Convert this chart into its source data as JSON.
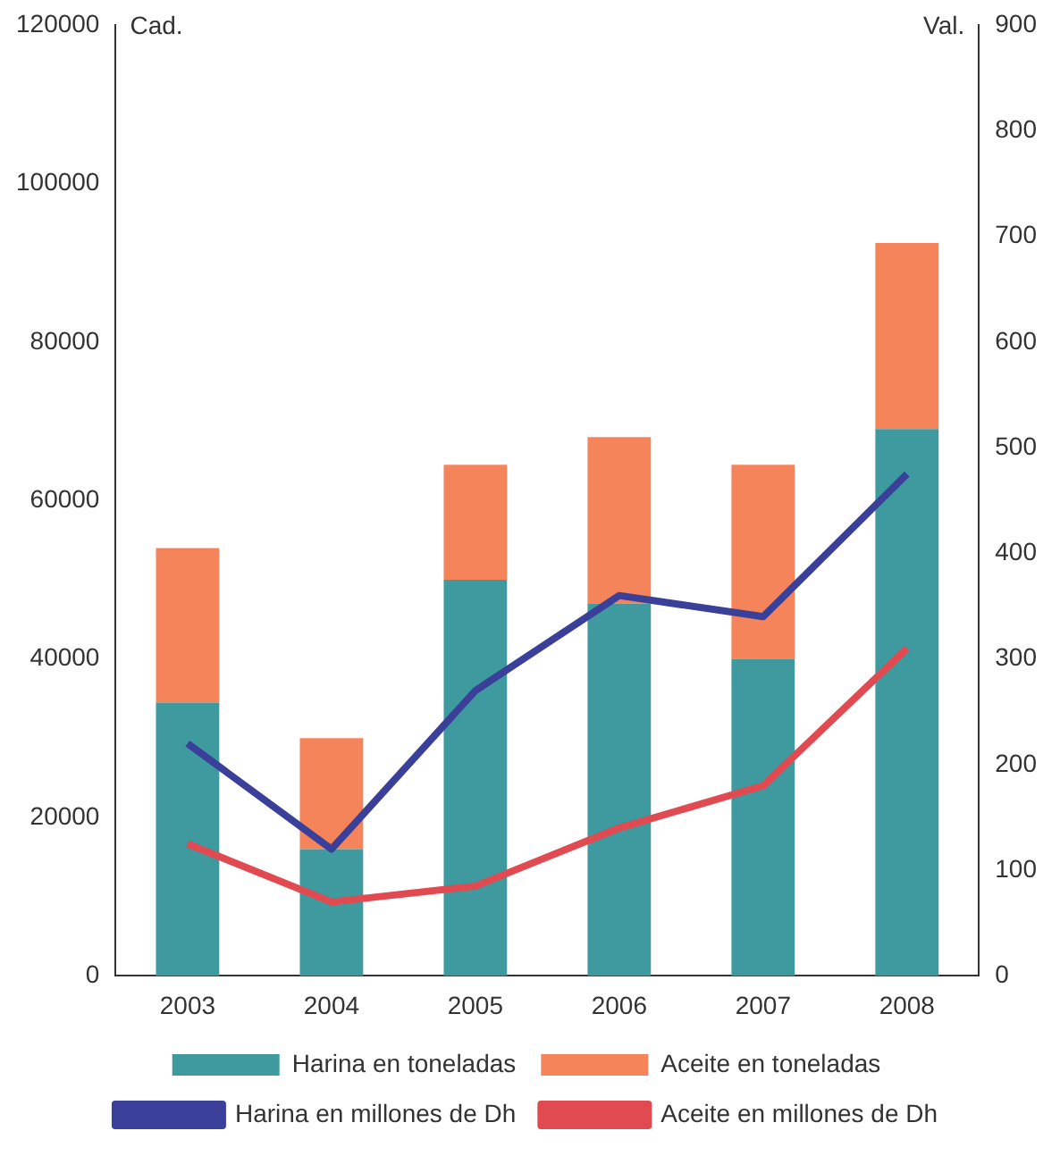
{
  "chart_data": {
    "type": "bar",
    "stacked": true,
    "categories": [
      "2003",
      "2004",
      "2005",
      "2006",
      "2007",
      "2008"
    ],
    "ylabel": "Cad.",
    "y2label": "Val.",
    "ylim": [
      0,
      120000
    ],
    "yticks": [
      0,
      20000,
      40000,
      60000,
      80000,
      100000,
      120000
    ],
    "y2lim": [
      0,
      900
    ],
    "y2ticks": [
      0,
      100,
      200,
      300,
      400,
      500,
      600,
      700,
      800,
      900
    ],
    "grid": false,
    "legend": "bottom",
    "series": [
      {
        "name": "Harina en toneladas",
        "color": "#3f9aa0",
        "values": [
          34500,
          16000,
          50000,
          47000,
          40000,
          69000
        ]
      },
      {
        "name": "Aceite en toneladas",
        "color": "#f5845a",
        "values": [
          19500,
          14000,
          14500,
          21000,
          24500,
          23500
        ]
      },
      {
        "name": "Harina en millones de Dh",
        "type": "line",
        "axis": "y2",
        "color": "#3a3f9a",
        "values": [
          220,
          120,
          270,
          360,
          340,
          475
        ]
      },
      {
        "name": "Aceite en millones de Dh",
        "type": "line",
        "axis": "y2",
        "color": "#e04a50",
        "values": [
          125,
          70,
          85,
          140,
          180,
          310
        ]
      }
    ]
  }
}
